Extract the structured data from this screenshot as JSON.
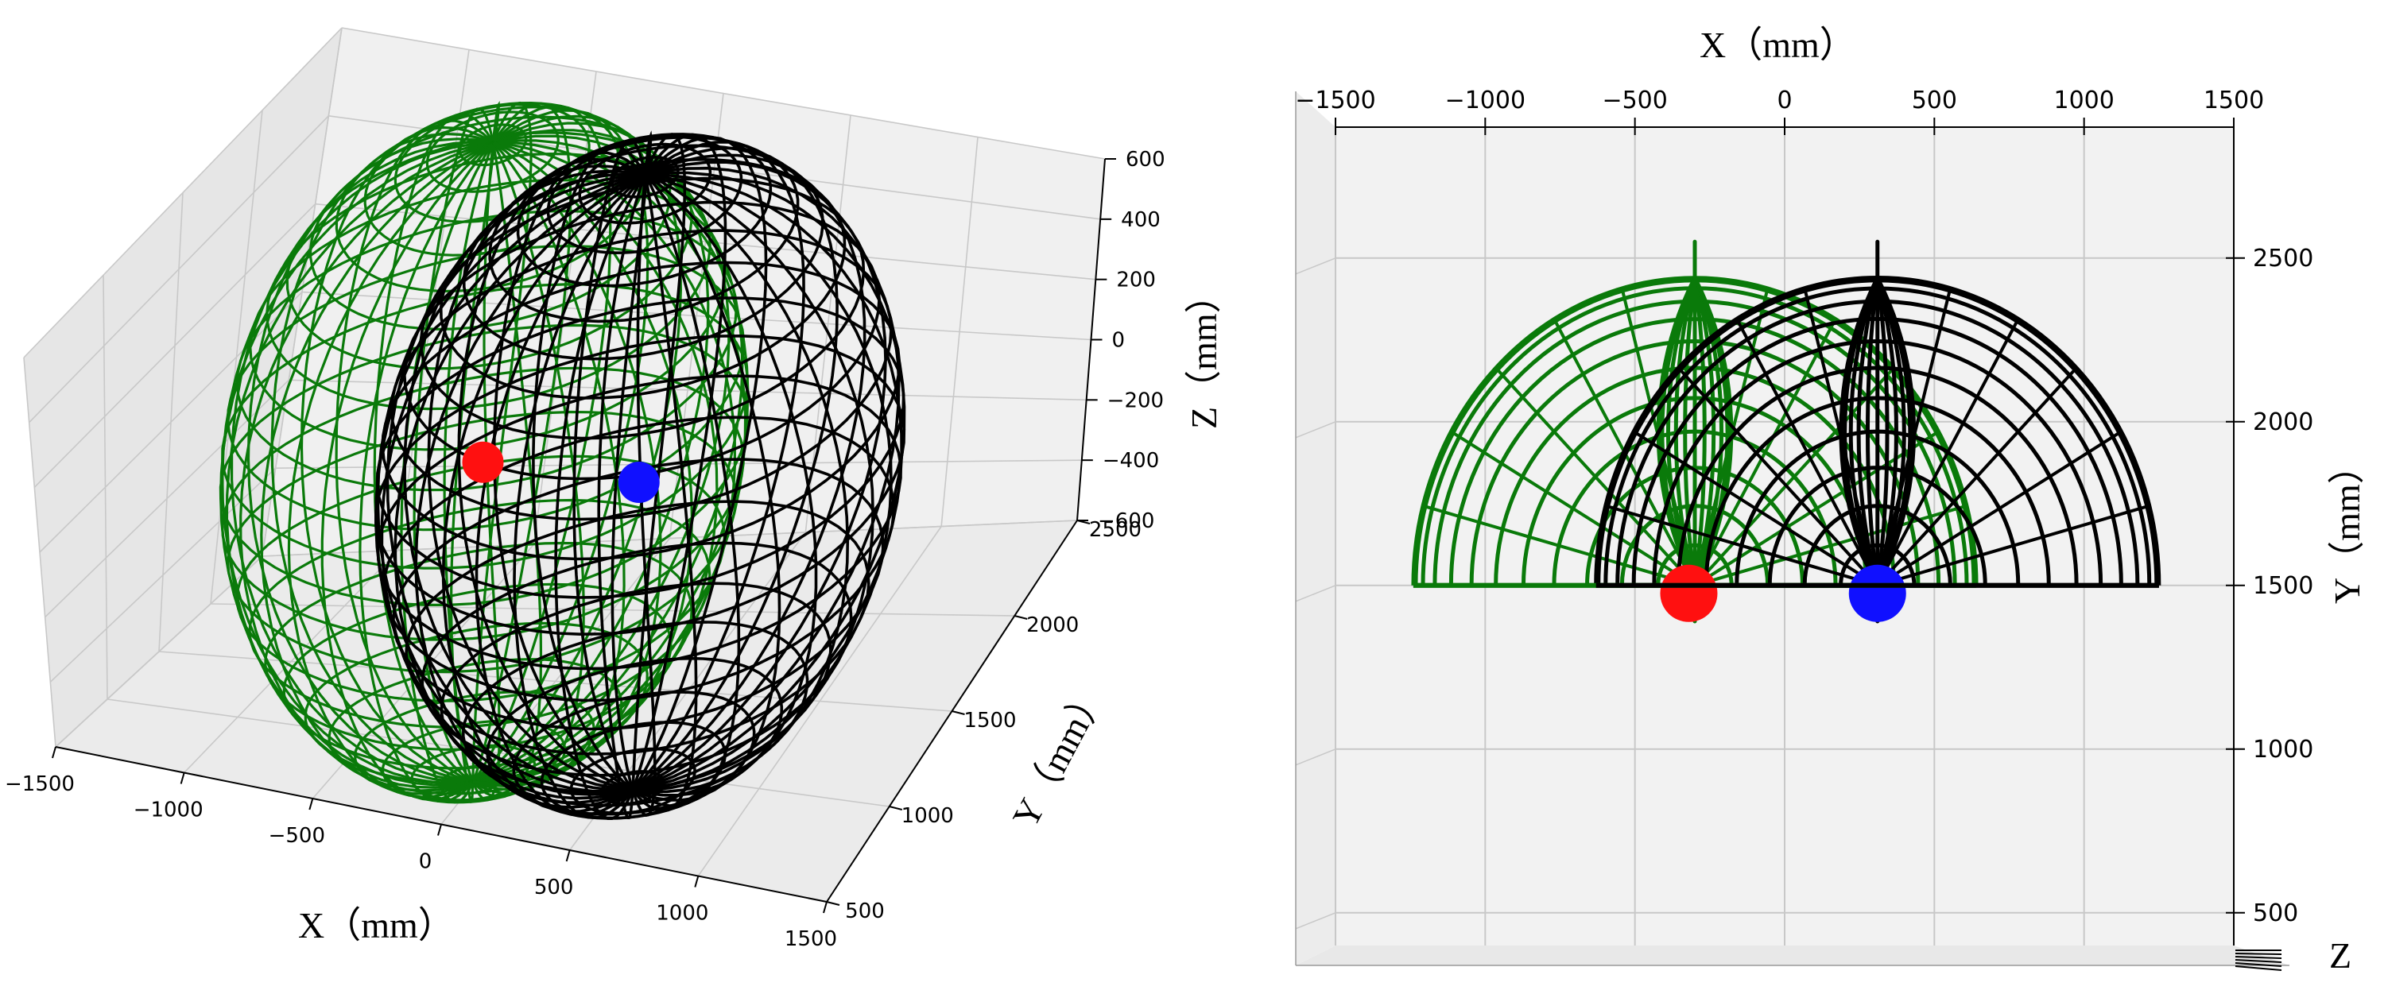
{
  "colors": {
    "pane_back": "#f0f0f0",
    "pane_floor": "#e9e9e9",
    "grid": "#c8c8c8",
    "green_sphere": "#0a7a0a",
    "black_sphere": "#000000",
    "red_point": "#ff1010",
    "blue_point": "#1010ff"
  },
  "chart_data": [
    {
      "type": "3d-wireframe",
      "view": "perspective",
      "xlabel": "X（mm）",
      "ylabel": "Y（mm）",
      "zlabel": "Z（mm）",
      "xticks": [
        "−1500",
        "−1000",
        "−500",
        "0",
        "500",
        "1000",
        "1500"
      ],
      "yticks": [
        "500",
        "1000",
        "1500",
        "2000",
        "2500"
      ],
      "zticks": [
        "600",
        "400",
        "200",
        "0",
        "−200",
        "−400",
        "−600"
      ],
      "xlim": [
        -1500,
        1500
      ],
      "ylim": [
        500,
        2500
      ],
      "zlim": [
        -600,
        600
      ],
      "grid": true,
      "surfaces": [
        {
          "shape": "sphere",
          "color": "green",
          "center": [
            -300,
            1500,
            0
          ],
          "radius": 900
        },
        {
          "shape": "sphere",
          "color": "black",
          "center": [
            300,
            1500,
            0
          ],
          "radius": 900
        }
      ],
      "points": [
        {
          "color": "red",
          "x": -300,
          "y": 1500,
          "z": 0
        },
        {
          "color": "blue",
          "x": 300,
          "y": 1500,
          "z": 0
        }
      ]
    },
    {
      "type": "3d-wireframe",
      "view": "top (X–Y plane)",
      "xlabel": "X（mm）",
      "ylabel": "Y（mm）",
      "zlabel": "Z",
      "xticks": [
        "−1500",
        "−1000",
        "−500",
        "0",
        "500",
        "1000",
        "1500"
      ],
      "yticks": [
        "2500",
        "2000",
        "1500",
        "1000",
        "500"
      ],
      "xlim": [
        -1500,
        1500
      ],
      "ylim": [
        400,
        2900
      ],
      "grid": true,
      "surfaces": [
        {
          "shape": "half-sphere",
          "color": "green",
          "center": [
            -300,
            1500
          ],
          "radius": 940
        },
        {
          "shape": "half-sphere",
          "color": "black",
          "center": [
            310,
            1500
          ],
          "radius": 940
        }
      ],
      "points": [
        {
          "color": "red",
          "x": -320,
          "y": 1500
        },
        {
          "color": "blue",
          "x": 310,
          "y": 1500
        }
      ]
    }
  ]
}
